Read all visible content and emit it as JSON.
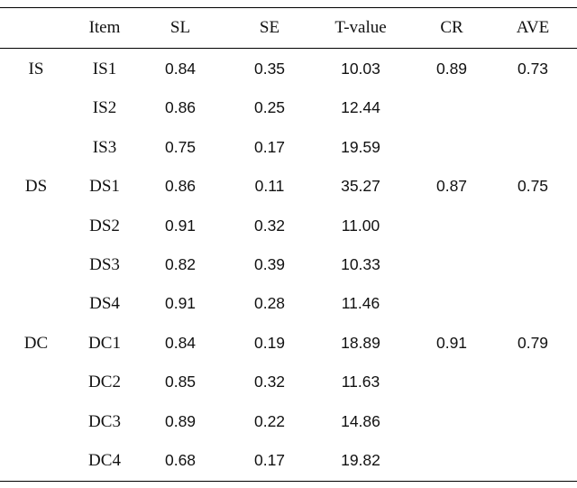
{
  "table": {
    "headers": [
      "",
      "Item",
      "SL",
      "SE",
      "T-value",
      "CR",
      "AVE"
    ],
    "rows": [
      [
        "IS",
        "IS1",
        "0.84",
        "0.35",
        "10.03",
        "0.89",
        "0.73"
      ],
      [
        "",
        "IS2",
        "0.86",
        "0.25",
        "12.44",
        "",
        ""
      ],
      [
        "",
        "IS3",
        "0.75",
        "0.17",
        "19.59",
        "",
        ""
      ],
      [
        "DS",
        "DS1",
        "0.86",
        "0.11",
        "35.27",
        "0.87",
        "0.75"
      ],
      [
        "",
        "DS2",
        "0.91",
        "0.32",
        "11.00",
        "",
        ""
      ],
      [
        "",
        "DS3",
        "0.82",
        "0.39",
        "10.33",
        "",
        ""
      ],
      [
        "",
        "DS4",
        "0.91",
        "0.28",
        "11.46",
        "",
        ""
      ],
      [
        "DC",
        "DC1",
        "0.84",
        "0.19",
        "18.89",
        "0.91",
        "0.79"
      ],
      [
        "",
        "DC2",
        "0.85",
        "0.32",
        "11.63",
        "",
        ""
      ],
      [
        "",
        "DC3",
        "0.89",
        "0.22",
        "14.86",
        "",
        ""
      ],
      [
        "",
        "DC4",
        "0.68",
        "0.17",
        "19.82",
        "",
        ""
      ]
    ]
  }
}
